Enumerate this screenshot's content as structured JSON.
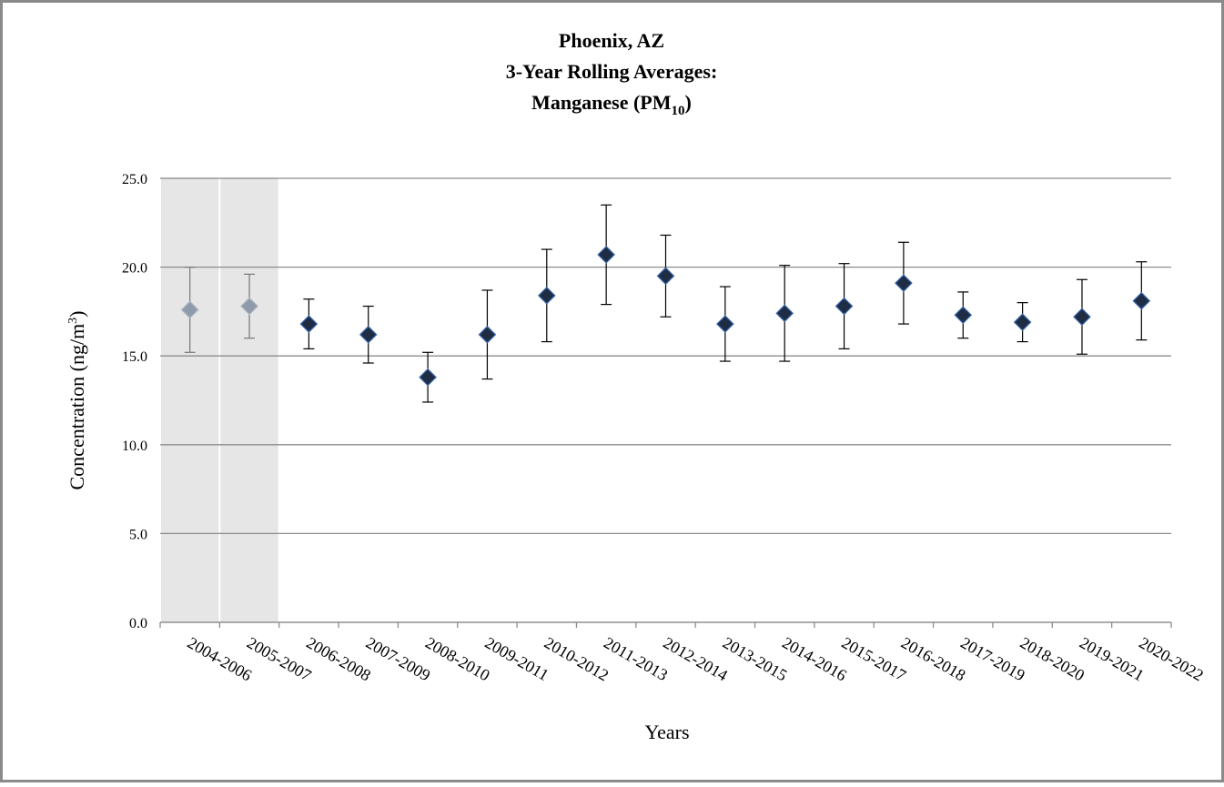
{
  "chart_data": {
    "type": "errorbar",
    "title_lines": [
      "Phoenix, AZ",
      "3-Year Rolling Averages:"
    ],
    "title_line3": {
      "text": "Manganese (PM",
      "subscript": "10",
      "suffix": ")"
    },
    "y_label": {
      "text": "Concentration (ng/m",
      "superscript": "3",
      "suffix": ")"
    },
    "x_label": "Years",
    "categories": [
      "2004-2006",
      "2005-2007",
      "2006-2008",
      "2007-2009",
      "2008-2010",
      "2009-2011",
      "2010-2012",
      "2011-2013",
      "2012-2014",
      "2013-2015",
      "2014-2016",
      "2015-2017",
      "2016-2018",
      "2017-2019",
      "2018-2020",
      "2019-2021",
      "2020-2022"
    ],
    "values": [
      17.6,
      17.8,
      16.8,
      16.2,
      13.8,
      16.2,
      18.4,
      20.7,
      19.5,
      16.8,
      17.4,
      17.8,
      19.1,
      17.3,
      16.9,
      17.2,
      18.1
    ],
    "errors": [
      2.4,
      1.8,
      1.4,
      1.6,
      1.4,
      2.5,
      2.6,
      2.8,
      2.3,
      2.1,
      2.7,
      2.4,
      2.3,
      1.3,
      1.1,
      2.1,
      2.2
    ],
    "color": "#1f2d44",
    "highlight": {
      "indices": [
        0,
        1
      ],
      "color": "#8f9baa",
      "shade": "#e6e6e6"
    },
    "ylim": [
      0,
      25
    ],
    "yticks": [
      {
        "value": 0,
        "label": "0.0"
      },
      {
        "value": 5,
        "label": "5.0"
      },
      {
        "value": 10,
        "label": "10.0"
      },
      {
        "value": 15,
        "label": "15.0"
      },
      {
        "value": 20,
        "label": "20.0"
      },
      {
        "value": 25,
        "label": "25.0"
      }
    ],
    "grid": true
  }
}
